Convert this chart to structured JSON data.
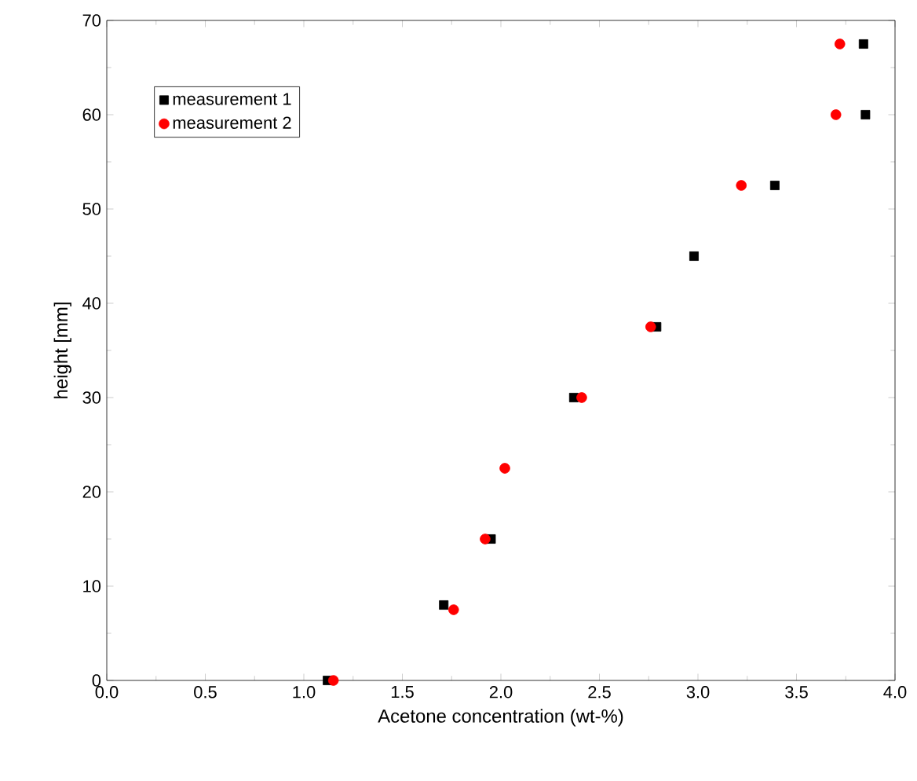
{
  "chart_data": {
    "type": "scatter",
    "xlabel": "Acetone concentration (wt-%)",
    "ylabel": "height [mm]",
    "xlim": [
      0,
      4
    ],
    "ylim": [
      0,
      70
    ],
    "xticks": [
      {
        "value": 0,
        "label": "0.0"
      },
      {
        "value": 0.5,
        "label": "0.5"
      },
      {
        "value": 1,
        "label": "1.0"
      },
      {
        "value": 1.5,
        "label": "1.5"
      },
      {
        "value": 2,
        "label": "2.0"
      },
      {
        "value": 2.5,
        "label": "2.5"
      },
      {
        "value": 3,
        "label": "3.0"
      },
      {
        "value": 3.5,
        "label": "3.5"
      },
      {
        "value": 4,
        "label": "4.0"
      }
    ],
    "yticks": [
      0,
      10,
      20,
      30,
      40,
      50,
      60,
      70
    ],
    "legend": "top left",
    "grid": false,
    "series": [
      {
        "name": "measurement 1",
        "color": "#000000",
        "marker": "square",
        "x": [
          1.12,
          1.71,
          1.95,
          2.37,
          2.79,
          2.98,
          3.39,
          3.85,
          3.84
        ],
        "values": [
          0,
          8,
          15,
          30,
          37.5,
          45,
          52.5,
          60,
          67.5
        ]
      },
      {
        "name": "measurement 2",
        "color": "#ff0000",
        "marker": "circle",
        "x": [
          1.15,
          1.76,
          1.92,
          2.02,
          2.41,
          2.76,
          3.22,
          3.7,
          3.72
        ],
        "values": [
          0,
          7.5,
          15,
          22.5,
          30,
          37.5,
          52.5,
          60,
          67.5
        ]
      }
    ]
  }
}
